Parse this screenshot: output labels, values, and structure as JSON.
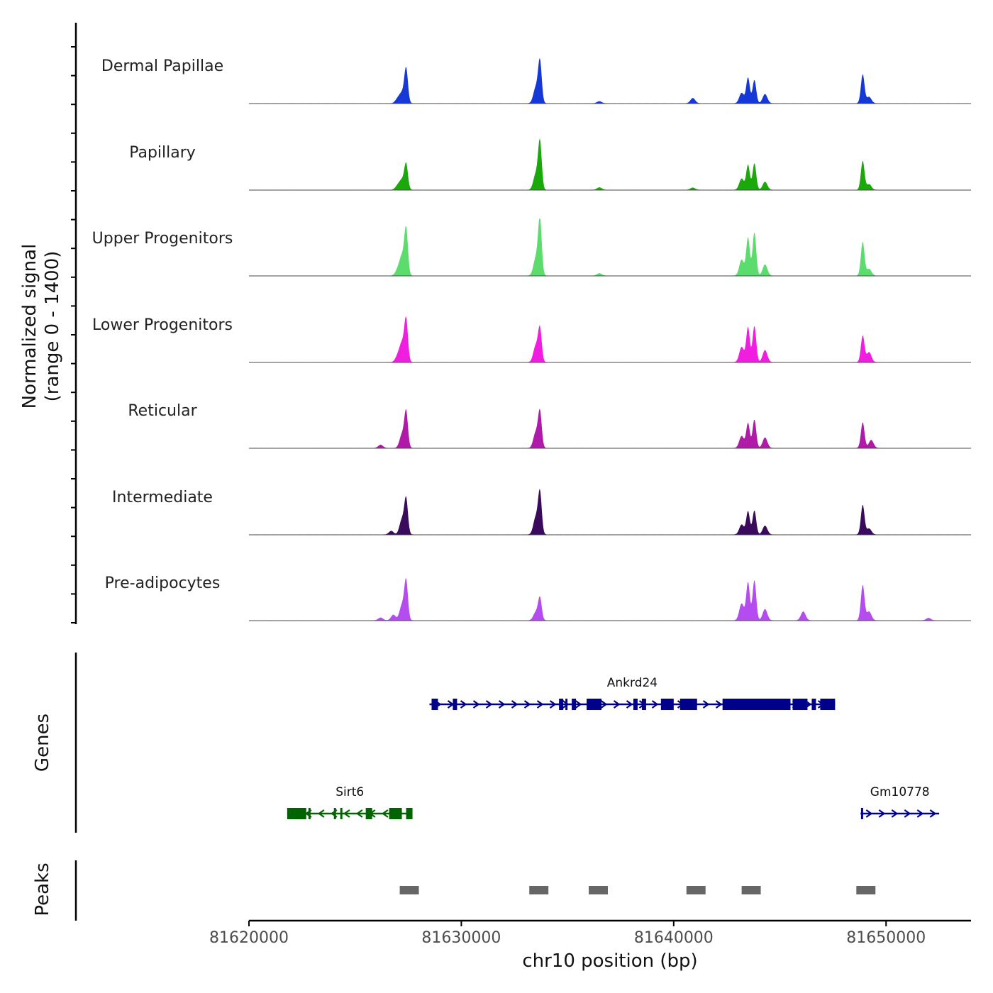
{
  "chart_data": {
    "type": "area",
    "title": "",
    "ylabel": "Normalized signal",
    "ylabel_range": "(range 0 - 1400)",
    "ylim": [
      0,
      1400
    ],
    "xlabel": "chr10 position (bp)",
    "xlim": [
      81620000,
      81654000
    ],
    "x_ticks": [
      81620000,
      81630000,
      81640000,
      81650000
    ],
    "x_tick_labels": [
      "81620000",
      "81630000",
      "81640000",
      "81650000"
    ],
    "tracks": [
      {
        "name": "Dermal Papillae",
        "color": "#1538d6",
        "peaks": [
          {
            "center": 81627400,
            "height": 860
          },
          {
            "center": 81627200,
            "height": 240
          },
          {
            "center": 81627000,
            "height": 110
          },
          {
            "center": 81633700,
            "height": 1050
          },
          {
            "center": 81633500,
            "height": 380
          },
          {
            "center": 81636500,
            "height": 50
          },
          {
            "center": 81640900,
            "height": 130
          },
          {
            "center": 81643500,
            "height": 640
          },
          {
            "center": 81643800,
            "height": 580
          },
          {
            "center": 81643200,
            "height": 260
          },
          {
            "center": 81644300,
            "height": 230
          },
          {
            "center": 81648900,
            "height": 720
          },
          {
            "center": 81649200,
            "height": 160
          }
        ]
      },
      {
        "name": "Papillary",
        "color": "#1aa80a",
        "peaks": [
          {
            "center": 81627400,
            "height": 640
          },
          {
            "center": 81627200,
            "height": 230
          },
          {
            "center": 81627000,
            "height": 100
          },
          {
            "center": 81633700,
            "height": 1200
          },
          {
            "center": 81633500,
            "height": 380
          },
          {
            "center": 81636500,
            "height": 60
          },
          {
            "center": 81640900,
            "height": 55
          },
          {
            "center": 81643500,
            "height": 620
          },
          {
            "center": 81643800,
            "height": 660
          },
          {
            "center": 81643200,
            "height": 280
          },
          {
            "center": 81644300,
            "height": 200
          },
          {
            "center": 81648900,
            "height": 720
          },
          {
            "center": 81649200,
            "height": 140
          }
        ]
      },
      {
        "name": "Upper Progenitors",
        "color": "#5cdc6c",
        "peaks": [
          {
            "center": 81627400,
            "height": 1150
          },
          {
            "center": 81627200,
            "height": 460
          },
          {
            "center": 81627000,
            "height": 140
          },
          {
            "center": 81633700,
            "height": 1400
          },
          {
            "center": 81633500,
            "height": 420
          },
          {
            "center": 81636500,
            "height": 60
          },
          {
            "center": 81643500,
            "height": 950
          },
          {
            "center": 81643800,
            "height": 1080
          },
          {
            "center": 81643200,
            "height": 400
          },
          {
            "center": 81644300,
            "height": 280
          },
          {
            "center": 81648900,
            "height": 840
          },
          {
            "center": 81649200,
            "height": 170
          }
        ]
      },
      {
        "name": "Lower Progenitors",
        "color": "#f01ee0",
        "peaks": [
          {
            "center": 81627400,
            "height": 1050
          },
          {
            "center": 81627200,
            "height": 450
          },
          {
            "center": 81627000,
            "height": 150
          },
          {
            "center": 81633700,
            "height": 830
          },
          {
            "center": 81633500,
            "height": 400
          },
          {
            "center": 81643500,
            "height": 870
          },
          {
            "center": 81643800,
            "height": 900
          },
          {
            "center": 81643200,
            "height": 380
          },
          {
            "center": 81644300,
            "height": 300
          },
          {
            "center": 81648900,
            "height": 660
          },
          {
            "center": 81649200,
            "height": 250
          }
        ]
      },
      {
        "name": "Reticular",
        "color": "#b01aa8",
        "peaks": [
          {
            "center": 81627400,
            "height": 900
          },
          {
            "center": 81627200,
            "height": 330
          },
          {
            "center": 81626200,
            "height": 80
          },
          {
            "center": 81633700,
            "height": 900
          },
          {
            "center": 81633500,
            "height": 380
          },
          {
            "center": 81643500,
            "height": 620
          },
          {
            "center": 81643800,
            "height": 710
          },
          {
            "center": 81643200,
            "height": 300
          },
          {
            "center": 81644300,
            "height": 260
          },
          {
            "center": 81648900,
            "height": 640
          },
          {
            "center": 81649300,
            "height": 200
          }
        ]
      },
      {
        "name": "Intermediate",
        "color": "#3a0a5c",
        "peaks": [
          {
            "center": 81627400,
            "height": 880
          },
          {
            "center": 81627200,
            "height": 370
          },
          {
            "center": 81626700,
            "height": 90
          },
          {
            "center": 81633700,
            "height": 1050
          },
          {
            "center": 81633500,
            "height": 420
          },
          {
            "center": 81643500,
            "height": 580
          },
          {
            "center": 81643800,
            "height": 600
          },
          {
            "center": 81643200,
            "height": 250
          },
          {
            "center": 81644300,
            "height": 220
          },
          {
            "center": 81648900,
            "height": 740
          },
          {
            "center": 81649200,
            "height": 150
          }
        ]
      },
      {
        "name": "Pre-adipocytes",
        "color": "#b44cf0",
        "peaks": [
          {
            "center": 81627400,
            "height": 980
          },
          {
            "center": 81627200,
            "height": 370
          },
          {
            "center": 81626800,
            "height": 140
          },
          {
            "center": 81626200,
            "height": 70
          },
          {
            "center": 81633700,
            "height": 560
          },
          {
            "center": 81633500,
            "height": 200
          },
          {
            "center": 81643500,
            "height": 950
          },
          {
            "center": 81643800,
            "height": 1000
          },
          {
            "center": 81643200,
            "height": 420
          },
          {
            "center": 81644300,
            "height": 280
          },
          {
            "center": 81646100,
            "height": 220
          },
          {
            "center": 81648900,
            "height": 880
          },
          {
            "center": 81649200,
            "height": 220
          },
          {
            "center": 81652000,
            "height": 60
          }
        ]
      }
    ],
    "genes_axis_title": "Genes",
    "genes": [
      {
        "name": "Ankrd24",
        "strand": "+",
        "color": "#00008b",
        "start": 81628500,
        "end": 81647600,
        "exons": [
          [
            81628600,
            81628900
          ],
          [
            81629600,
            81629800
          ],
          [
            81634600,
            81634800
          ],
          [
            81634900,
            81635000
          ],
          [
            81635200,
            81635400
          ],
          [
            81635900,
            81636600
          ],
          [
            81638100,
            81638300
          ],
          [
            81638500,
            81638700
          ],
          [
            81639400,
            81640000
          ],
          [
            81640300,
            81641100
          ],
          [
            81642300,
            81645500
          ],
          [
            81645600,
            81646300
          ],
          [
            81646500,
            81646700
          ],
          [
            81646900,
            81647600
          ]
        ]
      },
      {
        "name": "Sirt6",
        "strand": "-",
        "color": "#006400",
        "start": 81621800,
        "end": 81627700,
        "exons": [
          [
            81621800,
            81622700
          ],
          [
            81622800,
            81622900
          ],
          [
            81624000,
            81624100
          ],
          [
            81624300,
            81624400
          ],
          [
            81625500,
            81625800
          ],
          [
            81626600,
            81627200
          ],
          [
            81627400,
            81627700
          ]
        ]
      },
      {
        "name": "Gm10778",
        "strand": "+",
        "color": "#00008b",
        "start": 81648800,
        "end": 81652500,
        "exons": [
          [
            81648820,
            81648920
          ]
        ]
      }
    ],
    "peaks_axis_title": "Peaks",
    "peak_regions": [
      [
        81627100,
        81628000
      ],
      [
        81633200,
        81634100
      ],
      [
        81636000,
        81636900
      ],
      [
        81640600,
        81641500
      ],
      [
        81643200,
        81644100
      ],
      [
        81648600,
        81649500
      ]
    ],
    "colors": {
      "peak_region": "#666666",
      "axis": "#000000",
      "baseline": "#4a4a4a"
    }
  }
}
